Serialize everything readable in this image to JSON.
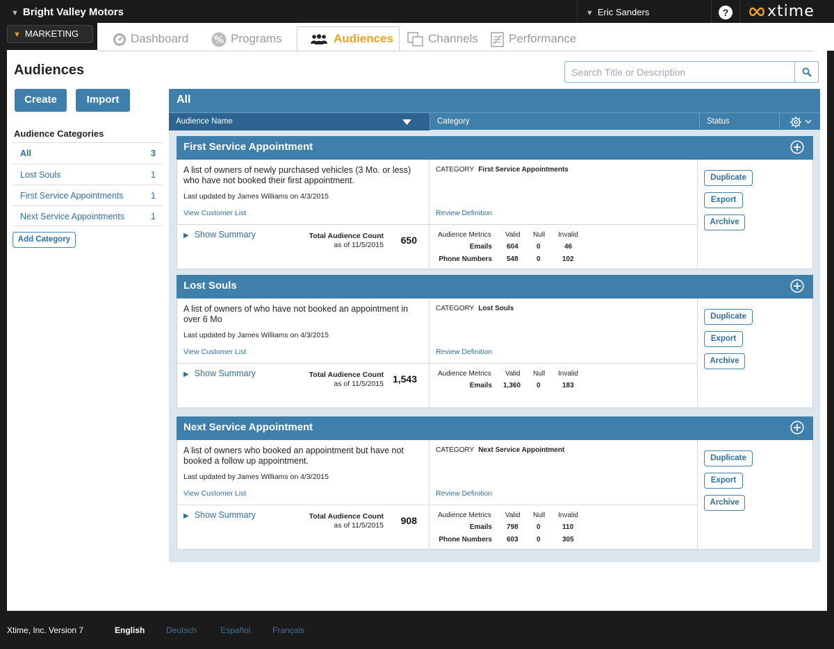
{
  "topbar": {
    "dealer": "Bright Valley Motors",
    "user": "Eric Sanders",
    "help": "?",
    "brand": "xtime"
  },
  "module": "MARKETING",
  "tabs": [
    "Dashboard",
    "Programs",
    "Audiences",
    "Channels",
    "Performance"
  ],
  "active_tab": "Audiences",
  "page": {
    "title": "Audiences",
    "search_placeholder": "Search Title or Description",
    "create_label": "Create",
    "import_label": "Import"
  },
  "categories": {
    "title": "Audience Categories",
    "items": [
      {
        "label": "All",
        "count": "3"
      },
      {
        "label": "Lost Souls",
        "count": "1"
      },
      {
        "label": "First Service Appointments",
        "count": "1"
      },
      {
        "label": "Next Service Appointments",
        "count": "1"
      }
    ],
    "add_label": "Add Category"
  },
  "list": {
    "heading": "All",
    "columns": {
      "name": "Audience Name",
      "category": "Category",
      "status": "Status"
    }
  },
  "card_labels": {
    "view_customer_list": "View Customer List",
    "review_definition": "Review Definition",
    "show_summary": "Show Summary",
    "total_count": "Total Audience Count",
    "category_prefix": "CATEGORY",
    "metrics_title": "Audience Metrics",
    "valid": "Valid",
    "null": "Null",
    "invalid": "Invalid",
    "duplicate": "Duplicate",
    "export": "Export",
    "archive": "Archive"
  },
  "audiences": [
    {
      "name": "First Service Appointment",
      "description": "A list of owners of newly purchased vehicles (3 Mo. or less) who have not booked their first appointment.",
      "updated": "Last updated by James Williams on 4/3/2015",
      "category": "First Service Appointments",
      "as_of": "as of 11/5/2015",
      "count": "650",
      "metrics": [
        {
          "label": "Emails",
          "valid": "604",
          "null": "0",
          "invalid": "46"
        },
        {
          "label": "Phone Numbers",
          "valid": "548",
          "null": "0",
          "invalid": "102"
        }
      ]
    },
    {
      "name": "Lost Souls",
      "description": "A list of owners of who have not booked an appointment in over 6 Mo",
      "updated": "Last updated by James Williams on 4/3/2015",
      "category": "Lost Souls",
      "as_of": "as of 11/5/2015",
      "count": "1,543",
      "metrics": [
        {
          "label": "Emails",
          "valid": "1,360",
          "null": "0",
          "invalid": "183"
        }
      ]
    },
    {
      "name": "Next Service Appointment",
      "description": "A list of owners who booked an appointment but have not booked a follow up appointment.",
      "updated": "Last updated by James Williams on 4/3/2015",
      "category": "Next Service Appointment",
      "as_of": "as of 11/5/2015",
      "count": "908",
      "metrics": [
        {
          "label": "Emails",
          "valid": "798",
          "null": "0",
          "invalid": "110"
        },
        {
          "label": "Phone Numbers",
          "valid": "603",
          "null": "0",
          "invalid": "305"
        }
      ]
    }
  ],
  "footer": {
    "version": "Xtime, Inc. Version 7",
    "languages": [
      "English",
      "Deutsch",
      "Español",
      "Français"
    ],
    "active_language": "English"
  },
  "colors": {
    "accent": "#3f7fac",
    "active_tab": "#f0a020",
    "link": "#2f6fa0"
  }
}
